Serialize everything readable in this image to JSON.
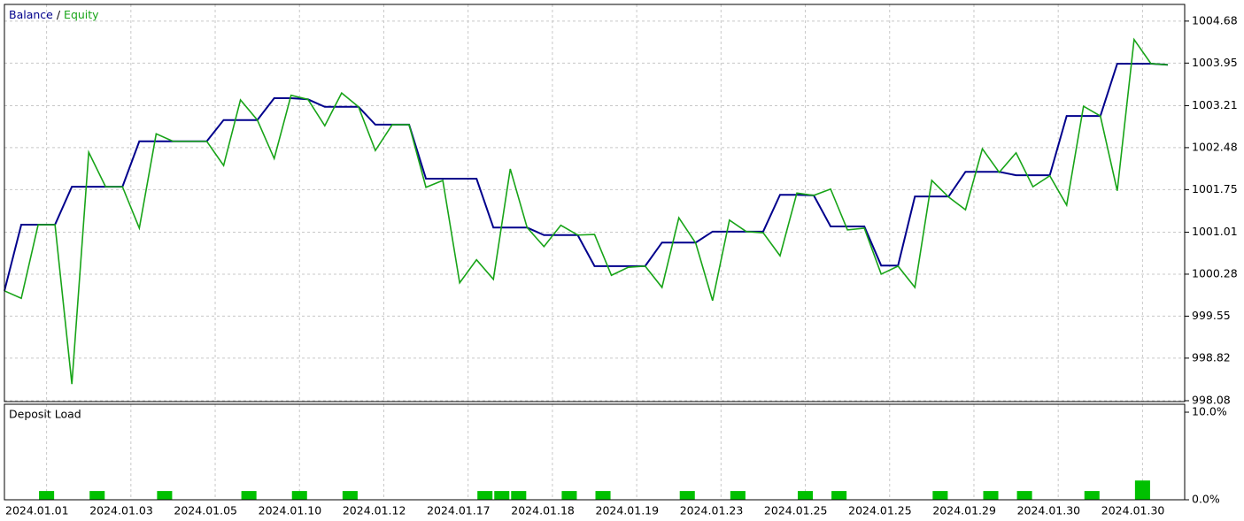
{
  "chart_data": [
    {
      "type": "line",
      "series": [
        {
          "name": "Balance",
          "color": "#00008c",
          "values": [
            999.99,
            1001.14,
            1001.14,
            1001.14,
            1001.8,
            1001.8,
            1001.8,
            1001.8,
            1002.59,
            1002.59,
            1002.59,
            1002.59,
            1002.59,
            1002.96,
            1002.96,
            1002.96,
            1003.34,
            1003.34,
            1003.32,
            1003.19,
            1003.19,
            1003.19,
            1002.88,
            1002.88,
            1002.88,
            1001.94,
            1001.94,
            1001.94,
            1001.94,
            1001.09,
            1001.09,
            1001.09,
            1000.96,
            1000.96,
            1000.96,
            1000.42,
            1000.42,
            1000.42,
            1000.42,
            1000.83,
            1000.83,
            1000.83,
            1001.02,
            1001.02,
            1001.02,
            1001.02,
            1001.66,
            1001.66,
            1001.65,
            1001.11,
            1001.11,
            1001.11,
            1000.43,
            1000.43,
            1001.63,
            1001.63,
            1001.63,
            1002.06,
            1002.06,
            1002.06,
            1002.0,
            1002.0,
            1002.0,
            1003.03,
            1003.03,
            1003.03,
            1003.94,
            1003.94,
            1003.94,
            1003.92
          ]
        },
        {
          "name": "Equity",
          "color": "#18a418",
          "values": [
            999.99,
            999.86,
            1001.14,
            1001.14,
            998.37,
            1002.4,
            1001.8,
            1001.8,
            1001.08,
            1002.72,
            1002.59,
            1002.59,
            1002.59,
            1002.17,
            1003.31,
            1002.96,
            1002.29,
            1003.39,
            1003.32,
            1002.86,
            1003.43,
            1003.19,
            1002.43,
            1002.88,
            1002.88,
            1001.79,
            1001.91,
            1000.13,
            1000.53,
            1000.19,
            1002.11,
            1001.09,
            1000.76,
            1001.13,
            1000.96,
            1000.97,
            1000.26,
            1000.4,
            1000.42,
            1000.05,
            1001.26,
            1000.82,
            999.82,
            1001.22,
            1001.02,
            1001.0,
            1000.6,
            1001.69,
            1001.65,
            1001.76,
            1001.05,
            1001.08,
            1000.28,
            1000.42,
            1000.05,
            1001.91,
            1001.62,
            1001.4,
            1002.46,
            1002.05,
            1002.39,
            1001.8,
            1001.99,
            1001.48,
            1003.2,
            1003.03,
            1001.73,
            1004.36,
            1003.94,
            1003.92
          ]
        }
      ],
      "legend_separator": "/",
      "ylim": [
        998.08,
        1004.97
      ],
      "yticks": [
        1004.68,
        1003.95,
        1003.21,
        1002.48,
        1001.75,
        1001.01,
        1000.28,
        999.55,
        998.82,
        998.08
      ],
      "grid": true
    },
    {
      "type": "bar",
      "title": "Deposit Load",
      "categories": [
        "2024.01.01",
        null,
        null,
        null,
        null,
        "2024.01.03",
        null,
        null,
        null,
        null,
        "2024.01.05",
        null,
        null,
        null,
        null,
        "2024.01.10",
        null,
        null,
        null,
        null,
        "2024.01.12",
        null,
        null,
        null,
        null,
        "2024.01.17",
        null,
        null,
        null,
        null,
        "2024.01.18",
        null,
        null,
        null,
        null,
        "2024.01.19",
        null,
        null,
        null,
        null,
        "2024.01.23",
        null,
        null,
        null,
        null,
        "2024.01.25",
        null,
        null,
        null,
        null,
        "2024.01.25",
        null,
        null,
        null,
        null,
        "2024.01.29",
        null,
        null,
        null,
        null,
        "2024.01.30",
        null,
        null,
        null,
        null,
        "2024.01.30",
        null,
        null,
        null,
        null
      ],
      "values": [
        null,
        null,
        1.0,
        null,
        null,
        1.0,
        null,
        null,
        null,
        1.0,
        null,
        null,
        null,
        null,
        1.0,
        null,
        null,
        1.0,
        null,
        null,
        1.0,
        null,
        null,
        null,
        null,
        null,
        null,
        null,
        1.0,
        1.0,
        1.0,
        null,
        null,
        1.0,
        null,
        1.0,
        null,
        null,
        null,
        null,
        1.0,
        null,
        null,
        1.0,
        null,
        null,
        null,
        1.0,
        null,
        1.0,
        null,
        null,
        null,
        null,
        null,
        1.0,
        null,
        null,
        1.0,
        null,
        1.0,
        null,
        null,
        null,
        1.0,
        null,
        null,
        2.2,
        null,
        null
      ],
      "color": "#00c000",
      "ylim": [
        0,
        10
      ],
      "yticks": [
        {
          "value": 10,
          "label": "10.0%"
        },
        {
          "value": 0,
          "label": "0.0%"
        }
      ],
      "grid": true
    }
  ]
}
